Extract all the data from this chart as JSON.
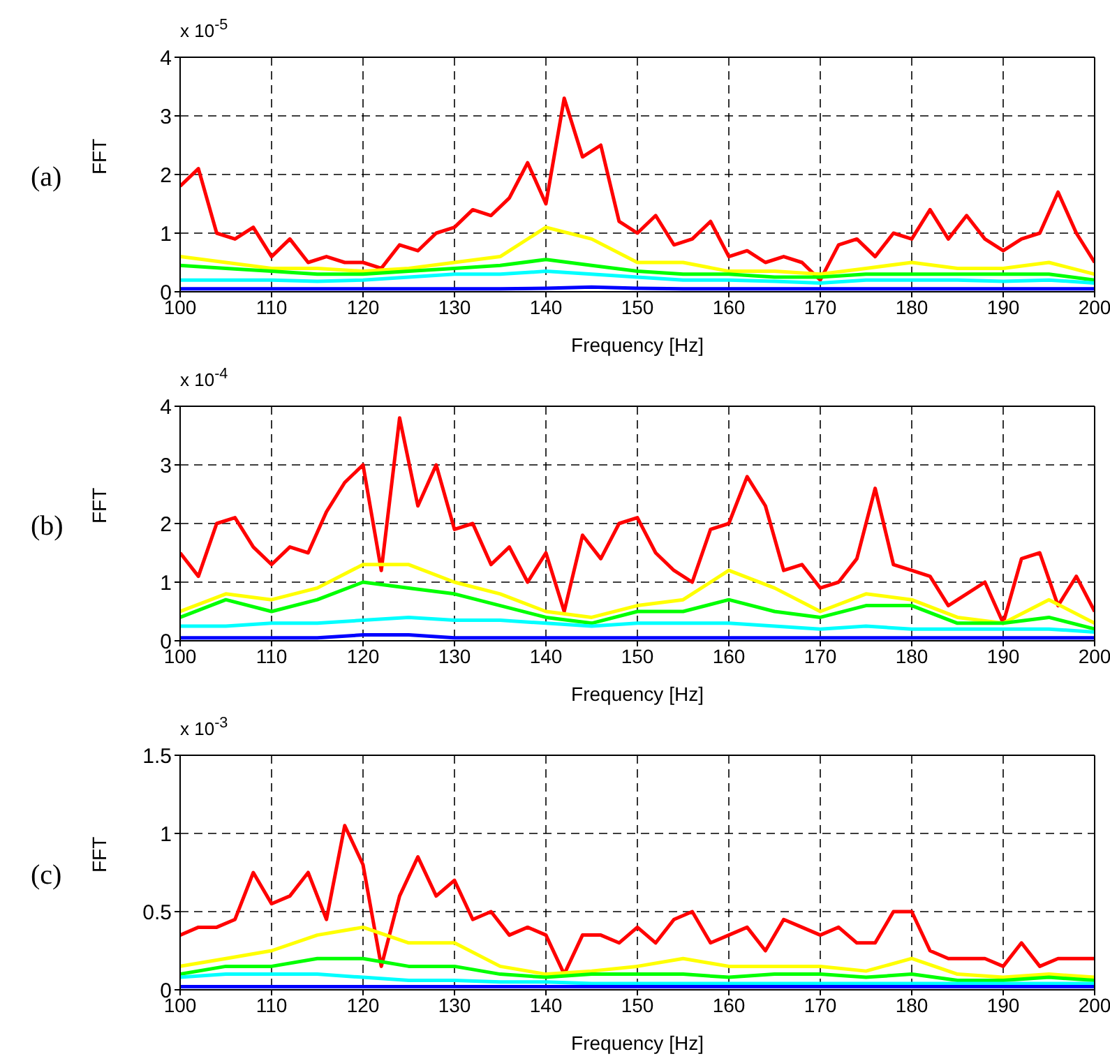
{
  "chart_data": [
    {
      "type": "line",
      "xlabel": "Frequency [Hz]",
      "ylabel": "FFT",
      "annotations": [
        "(a)",
        "x 10$^{-5}$"
      ],
      "xlim": [
        100,
        200
      ],
      "xticks": [
        100,
        110,
        120,
        130,
        140,
        150,
        160,
        170,
        180,
        190,
        200
      ],
      "ylim": [
        0,
        4
      ],
      "yticks": [
        0,
        1,
        2,
        3,
        4
      ],
      "grid": true,
      "line_style": "solid",
      "series": [
        {
          "color": "#ff0000",
          "x": [
            100,
            102,
            104,
            106,
            108,
            110,
            112,
            114,
            116,
            118,
            120,
            122,
            124,
            126,
            128,
            130,
            132,
            134,
            136,
            138,
            140,
            142,
            144,
            146,
            148,
            150,
            152,
            154,
            156,
            158,
            160,
            162,
            164,
            166,
            168,
            170,
            172,
            174,
            176,
            178,
            180,
            182,
            184,
            186,
            188,
            190,
            192,
            194,
            196,
            198,
            200
          ],
          "values": [
            1.8,
            2.1,
            1.0,
            0.9,
            1.1,
            0.6,
            0.9,
            0.5,
            0.6,
            0.5,
            0.5,
            0.4,
            0.8,
            0.7,
            1.0,
            1.1,
            1.4,
            1.3,
            1.6,
            2.2,
            1.5,
            3.3,
            2.3,
            2.5,
            1.2,
            1.0,
            1.3,
            0.8,
            0.9,
            1.2,
            0.6,
            0.7,
            0.5,
            0.6,
            0.5,
            0.2,
            0.8,
            0.9,
            0.6,
            1.0,
            0.9,
            1.4,
            0.9,
            1.3,
            0.9,
            0.7,
            0.9,
            1.0,
            1.7,
            1.0,
            0.5
          ]
        },
        {
          "color": "#ffff00",
          "x": [
            100,
            105,
            110,
            115,
            120,
            125,
            130,
            135,
            140,
            145,
            150,
            155,
            160,
            165,
            170,
            175,
            180,
            185,
            190,
            195,
            200
          ],
          "values": [
            0.6,
            0.5,
            0.4,
            0.4,
            0.35,
            0.4,
            0.5,
            0.6,
            1.1,
            0.9,
            0.5,
            0.5,
            0.35,
            0.35,
            0.3,
            0.4,
            0.5,
            0.4,
            0.4,
            0.5,
            0.3
          ]
        },
        {
          "color": "#00ff00",
          "x": [
            100,
            105,
            110,
            115,
            120,
            125,
            130,
            135,
            140,
            145,
            150,
            155,
            160,
            165,
            170,
            175,
            180,
            185,
            190,
            195,
            200
          ],
          "values": [
            0.45,
            0.4,
            0.35,
            0.3,
            0.3,
            0.35,
            0.4,
            0.45,
            0.55,
            0.45,
            0.35,
            0.3,
            0.3,
            0.25,
            0.25,
            0.3,
            0.3,
            0.3,
            0.3,
            0.3,
            0.2
          ]
        },
        {
          "color": "#00ffff",
          "x": [
            100,
            105,
            110,
            115,
            120,
            125,
            130,
            135,
            140,
            145,
            150,
            155,
            160,
            165,
            170,
            175,
            180,
            185,
            190,
            195,
            200
          ],
          "values": [
            0.2,
            0.2,
            0.2,
            0.18,
            0.2,
            0.25,
            0.3,
            0.3,
            0.35,
            0.3,
            0.25,
            0.2,
            0.2,
            0.18,
            0.15,
            0.2,
            0.2,
            0.2,
            0.18,
            0.2,
            0.15
          ]
        },
        {
          "color": "#0000ff",
          "x": [
            100,
            105,
            110,
            115,
            120,
            125,
            130,
            135,
            140,
            145,
            150,
            155,
            160,
            165,
            170,
            175,
            180,
            185,
            190,
            195,
            200
          ],
          "values": [
            0.05,
            0.05,
            0.05,
            0.05,
            0.05,
            0.05,
            0.05,
            0.05,
            0.06,
            0.08,
            0.06,
            0.05,
            0.05,
            0.05,
            0.05,
            0.05,
            0.05,
            0.05,
            0.05,
            0.05,
            0.05
          ]
        }
      ]
    },
    {
      "type": "line",
      "xlabel": "Frequency [Hz]",
      "ylabel": "FFT",
      "annotations": [
        "(b)",
        "x 10$^{-4}$"
      ],
      "xlim": [
        100,
        200
      ],
      "xticks": [
        100,
        110,
        120,
        130,
        140,
        150,
        160,
        170,
        180,
        190,
        200
      ],
      "ylim": [
        0,
        4
      ],
      "yticks": [
        0,
        1,
        2,
        3,
        4
      ],
      "grid": true,
      "line_style": "solid",
      "series": [
        {
          "color": "#ff0000",
          "x": [
            100,
            102,
            104,
            106,
            108,
            110,
            112,
            114,
            116,
            118,
            120,
            122,
            124,
            126,
            128,
            130,
            132,
            134,
            136,
            138,
            140,
            142,
            144,
            146,
            148,
            150,
            152,
            154,
            156,
            158,
            160,
            162,
            164,
            166,
            168,
            170,
            172,
            174,
            176,
            178,
            180,
            182,
            184,
            186,
            188,
            190,
            192,
            194,
            196,
            198,
            200
          ],
          "values": [
            1.5,
            1.1,
            2.0,
            2.1,
            1.6,
            1.3,
            1.6,
            1.5,
            2.2,
            2.7,
            3.0,
            1.2,
            3.8,
            2.3,
            3.0,
            1.9,
            2.0,
            1.3,
            1.6,
            1.0,
            1.5,
            0.5,
            1.8,
            1.4,
            2.0,
            2.1,
            1.5,
            1.2,
            1.0,
            1.9,
            2.0,
            2.8,
            2.3,
            1.2,
            1.3,
            0.9,
            1.0,
            1.4,
            2.6,
            1.3,
            1.2,
            1.1,
            0.6,
            0.8,
            1.0,
            0.3,
            1.4,
            1.5,
            0.6,
            1.1,
            0.5
          ]
        },
        {
          "color": "#ffff00",
          "x": [
            100,
            105,
            110,
            115,
            120,
            125,
            130,
            135,
            140,
            145,
            150,
            155,
            160,
            165,
            170,
            175,
            180,
            185,
            190,
            195,
            200
          ],
          "values": [
            0.5,
            0.8,
            0.7,
            0.9,
            1.3,
            1.3,
            1.0,
            0.8,
            0.5,
            0.4,
            0.6,
            0.7,
            1.2,
            0.9,
            0.5,
            0.8,
            0.7,
            0.4,
            0.3,
            0.7,
            0.3
          ]
        },
        {
          "color": "#00ff00",
          "x": [
            100,
            105,
            110,
            115,
            120,
            125,
            130,
            135,
            140,
            145,
            150,
            155,
            160,
            165,
            170,
            175,
            180,
            185,
            190,
            195,
            200
          ],
          "values": [
            0.4,
            0.7,
            0.5,
            0.7,
            1.0,
            0.9,
            0.8,
            0.6,
            0.4,
            0.3,
            0.5,
            0.5,
            0.7,
            0.5,
            0.4,
            0.6,
            0.6,
            0.3,
            0.3,
            0.4,
            0.2
          ]
        },
        {
          "color": "#00ffff",
          "x": [
            100,
            105,
            110,
            115,
            120,
            125,
            130,
            135,
            140,
            145,
            150,
            155,
            160,
            165,
            170,
            175,
            180,
            185,
            190,
            195,
            200
          ],
          "values": [
            0.25,
            0.25,
            0.3,
            0.3,
            0.35,
            0.4,
            0.35,
            0.35,
            0.3,
            0.25,
            0.3,
            0.3,
            0.3,
            0.25,
            0.2,
            0.25,
            0.2,
            0.2,
            0.2,
            0.2,
            0.15
          ]
        },
        {
          "color": "#0000ff",
          "x": [
            100,
            105,
            110,
            115,
            120,
            125,
            130,
            135,
            140,
            145,
            150,
            155,
            160,
            165,
            170,
            175,
            180,
            185,
            190,
            195,
            200
          ],
          "values": [
            0.05,
            0.05,
            0.05,
            0.05,
            0.1,
            0.1,
            0.05,
            0.05,
            0.05,
            0.05,
            0.05,
            0.05,
            0.05,
            0.05,
            0.05,
            0.05,
            0.05,
            0.05,
            0.05,
            0.05,
            0.05
          ]
        }
      ]
    },
    {
      "type": "line",
      "xlabel": "Frequency [Hz]",
      "ylabel": "FFT",
      "annotations": [
        "(c)",
        "x 10$^{-3}$"
      ],
      "xlim": [
        100,
        200
      ],
      "xticks": [
        100,
        110,
        120,
        130,
        140,
        150,
        160,
        170,
        180,
        190,
        200
      ],
      "ylim": [
        0,
        1.5
      ],
      "yticks": [
        0,
        {
          "value": 0.5,
          "label": "0.5"
        },
        1,
        {
          "value": 1.5,
          "label": "1.5"
        }
      ],
      "grid": true,
      "line_style": "solid",
      "series": [
        {
          "color": "#ff0000",
          "x": [
            100,
            102,
            104,
            106,
            108,
            110,
            112,
            114,
            116,
            118,
            120,
            122,
            124,
            126,
            128,
            130,
            132,
            134,
            136,
            138,
            140,
            142,
            144,
            146,
            148,
            150,
            152,
            154,
            156,
            158,
            160,
            162,
            164,
            166,
            168,
            170,
            172,
            174,
            176,
            178,
            180,
            182,
            184,
            186,
            188,
            190,
            192,
            194,
            196,
            198,
            200
          ],
          "values": [
            0.35,
            0.4,
            0.4,
            0.45,
            0.75,
            0.55,
            0.6,
            0.75,
            0.45,
            1.05,
            0.8,
            0.15,
            0.6,
            0.85,
            0.6,
            0.7,
            0.45,
            0.5,
            0.35,
            0.4,
            0.35,
            0.1,
            0.35,
            0.35,
            0.3,
            0.4,
            0.3,
            0.45,
            0.5,
            0.3,
            0.35,
            0.4,
            0.25,
            0.45,
            0.4,
            0.35,
            0.4,
            0.3,
            0.3,
            0.5,
            0.5,
            0.25,
            0.2,
            0.2,
            0.2,
            0.15,
            0.3,
            0.15,
            0.2,
            0.2,
            0.2
          ]
        },
        {
          "color": "#ffff00",
          "x": [
            100,
            105,
            110,
            115,
            120,
            125,
            130,
            135,
            140,
            145,
            150,
            155,
            160,
            165,
            170,
            175,
            180,
            185,
            190,
            195,
            200
          ],
          "values": [
            0.15,
            0.2,
            0.25,
            0.35,
            0.4,
            0.3,
            0.3,
            0.15,
            0.1,
            0.12,
            0.15,
            0.2,
            0.15,
            0.15,
            0.15,
            0.12,
            0.2,
            0.1,
            0.08,
            0.1,
            0.08
          ]
        },
        {
          "color": "#00ff00",
          "x": [
            100,
            105,
            110,
            115,
            120,
            125,
            130,
            135,
            140,
            145,
            150,
            155,
            160,
            165,
            170,
            175,
            180,
            185,
            190,
            195,
            200
          ],
          "values": [
            0.1,
            0.15,
            0.15,
            0.2,
            0.2,
            0.15,
            0.15,
            0.1,
            0.08,
            0.1,
            0.1,
            0.1,
            0.08,
            0.1,
            0.1,
            0.08,
            0.1,
            0.06,
            0.06,
            0.08,
            0.06
          ]
        },
        {
          "color": "#00ffff",
          "x": [
            100,
            105,
            110,
            115,
            120,
            125,
            130,
            135,
            140,
            145,
            150,
            155,
            160,
            165,
            170,
            175,
            180,
            185,
            190,
            195,
            200
          ],
          "values": [
            0.08,
            0.1,
            0.1,
            0.1,
            0.08,
            0.06,
            0.06,
            0.05,
            0.05,
            0.04,
            0.04,
            0.04,
            0.04,
            0.04,
            0.04,
            0.04,
            0.04,
            0.04,
            0.04,
            0.04,
            0.04
          ]
        },
        {
          "color": "#0000ff",
          "x": [
            100,
            105,
            110,
            115,
            120,
            125,
            130,
            135,
            140,
            145,
            150,
            155,
            160,
            165,
            170,
            175,
            180,
            185,
            190,
            195,
            200
          ],
          "values": [
            0.02,
            0.02,
            0.02,
            0.02,
            0.02,
            0.02,
            0.02,
            0.02,
            0.02,
            0.02,
            0.02,
            0.02,
            0.02,
            0.02,
            0.02,
            0.02,
            0.02,
            0.02,
            0.02,
            0.02,
            0.02
          ]
        }
      ]
    }
  ]
}
